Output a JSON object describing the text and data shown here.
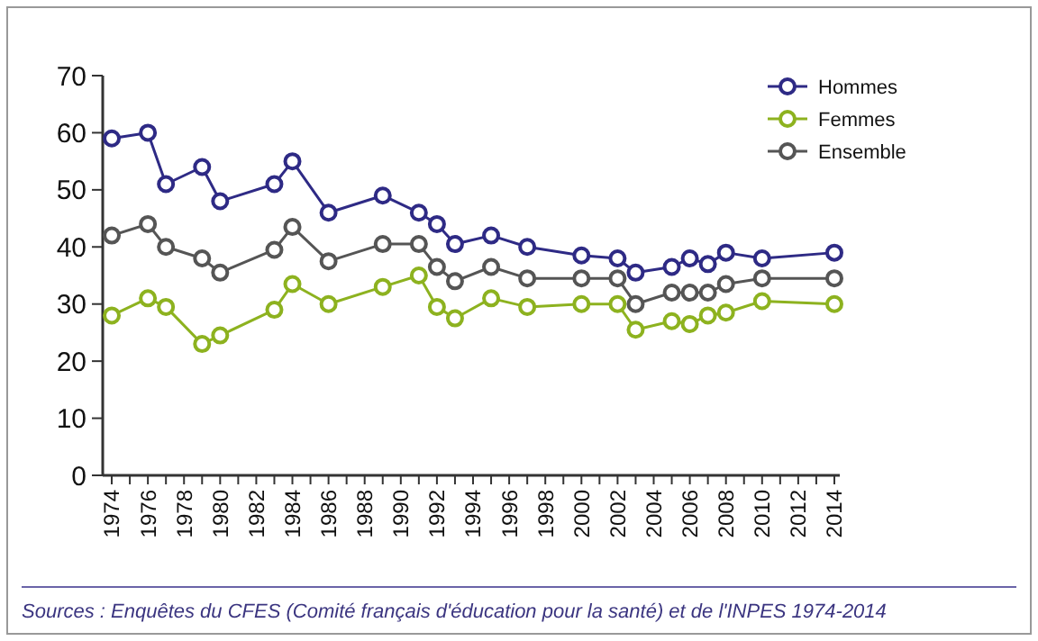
{
  "chart_data": {
    "type": "line",
    "x": [
      1974,
      1976,
      1977,
      1979,
      1980,
      1983,
      1984,
      1986,
      1989,
      1991,
      1992,
      1993,
      1995,
      1997,
      2000,
      2002,
      2003,
      2005,
      2006,
      2007,
      2008,
      2010,
      2014
    ],
    "series": [
      {
        "name": "Hommes",
        "color": "#2e2a85",
        "values": [
          59,
          60,
          51,
          54,
          48,
          51,
          55,
          46,
          49,
          46,
          44,
          40.5,
          42,
          40,
          38.5,
          38,
          35.5,
          36.5,
          38,
          37,
          39,
          38,
          39
        ]
      },
      {
        "name": "Femmes",
        "color": "#8db21f",
        "values": [
          28,
          31,
          29.5,
          23,
          24.5,
          29,
          33.5,
          30,
          33,
          35,
          29.5,
          27.5,
          31,
          29.5,
          30,
          30,
          25.5,
          27,
          26.5,
          28,
          28.5,
          30.5,
          30
        ]
      },
      {
        "name": "Ensemble",
        "color": "#555555",
        "values": [
          42,
          44,
          40,
          38,
          35.5,
          39.5,
          43.5,
          37.5,
          40.5,
          40.5,
          36.5,
          34,
          36.5,
          34.5,
          34.5,
          34.5,
          30,
          32,
          32,
          32,
          33.5,
          34.5,
          34.5
        ]
      }
    ],
    "ylim": [
      0,
      70
    ],
    "yticks": [
      0,
      10,
      20,
      30,
      40,
      50,
      60,
      70
    ],
    "xlim": [
      1973.5,
      2014.3
    ],
    "xticks": [
      1974,
      {
        "value": 1975,
        "label": null
      },
      1976,
      {
        "value": 1977,
        "label": null
      },
      1978,
      {
        "value": 1979,
        "label": null
      },
      1980,
      {
        "value": 1981,
        "label": null
      },
      1982,
      {
        "value": 1983,
        "label": null
      },
      1984,
      {
        "value": 1985,
        "label": null
      },
      1986,
      {
        "value": 1987,
        "label": null
      },
      1988,
      {
        "value": 1989,
        "label": null
      },
      1990,
      {
        "value": 1991,
        "label": null
      },
      1992,
      {
        "value": 1993,
        "label": null
      },
      1994,
      {
        "value": 1995,
        "label": null
      },
      1996,
      {
        "value": 1997,
        "label": null
      },
      1998,
      {
        "value": 1999,
        "label": null
      },
      2000,
      {
        "value": 2001,
        "label": null
      },
      2002,
      {
        "value": 2003,
        "label": null
      },
      2004,
      {
        "value": 2005,
        "label": null
      },
      2006,
      {
        "value": 2007,
        "label": null
      },
      2008,
      {
        "value": 2009,
        "label": null
      },
      2010,
      {
        "value": 2011,
        "label": null
      },
      2012,
      {
        "value": 2013,
        "label": null
      },
      2014
    ],
    "marker": "circle",
    "legend": "top right",
    "grid": false,
    "annotations": [
      "Sources : Enquêtes du CFES (Comité français d'éducation pour la santé) et de l'INPES 1974-2014"
    ]
  }
}
